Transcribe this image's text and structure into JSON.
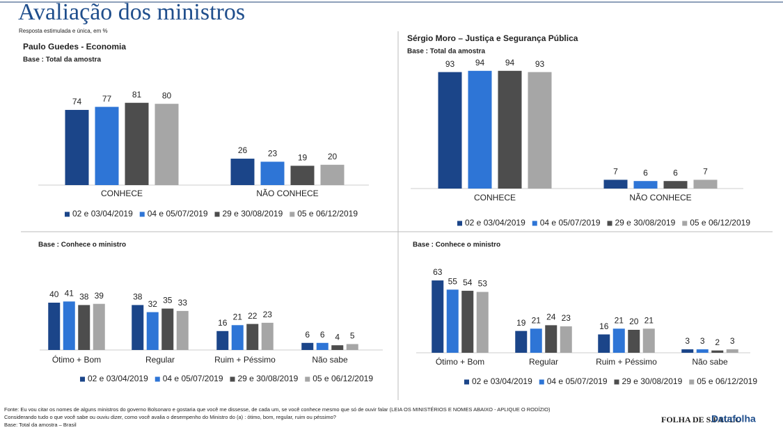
{
  "title": "Avaliação dos ministros",
  "subtitle": "Resposta estimulada e única, em %",
  "footnote": [
    "Fonte:   Eu vou citar os nomes de alguns ministros do governo Bolsonaro e gostaria que você  me dissesse, de cada um, se você conhece mesmo que só de ouvir falar (LEIA OS MINISTÉRIOS E NOMES ABAIXO - APLIQUE O RODÍZIO)",
    " Considerando tudo o que você sabe ou ouviu dizer, como você avalia o desempenho do Ministro do (a)  : ótimo, bom, regular, ruim ou péssimo?",
    "Base: Total da amostra – Brasil"
  ],
  "logos": [
    "FOLHA DE S.PAULO",
    "Datafolha"
  ],
  "chart_data": [
    {
      "type": "bar",
      "title": "Paulo Guedes - Economia",
      "subtitle": "Base : Total da amostra",
      "categories": [
        "CONHECE",
        "NÃO CONHECE"
      ],
      "ylim": [
        0,
        100
      ],
      "series": [
        {
          "name": "02 e 03/04/2019",
          "color": "#1b4589",
          "values": [
            74,
            26
          ]
        },
        {
          "name": "04 e 05/07/2019",
          "color": "#2e75d6",
          "values": [
            77,
            23
          ]
        },
        {
          "name": "29 e 30/08/2019",
          "color": "#4d4d4d",
          "values": [
            81,
            19
          ]
        },
        {
          "name": "05 e 06/12/2019",
          "color": "#a6a6a6",
          "values": [
            80,
            20
          ]
        }
      ]
    },
    {
      "type": "bar",
      "title": "Sérgio Moro – Justiça e Segurança Pública",
      "subtitle": "Base : Total da amostra",
      "categories": [
        "CONHECE",
        "NÃO CONHECE"
      ],
      "ylim": [
        0,
        100
      ],
      "series": [
        {
          "name": "02 e 03/04/2019",
          "color": "#1b4589",
          "values": [
            93,
            7
          ]
        },
        {
          "name": "04 e 05/07/2019",
          "color": "#2e75d6",
          "values": [
            94,
            6
          ]
        },
        {
          "name": "29 e 30/08/2019",
          "color": "#4d4d4d",
          "values": [
            94,
            6
          ]
        },
        {
          "name": "05 e 06/12/2019",
          "color": "#a6a6a6",
          "values": [
            93,
            7
          ]
        }
      ]
    },
    {
      "type": "bar",
      "subtitle": "Base : Conhece o ministro",
      "categories": [
        "Ótimo + Bom",
        "Regular",
        "Ruim + Péssimo",
        "Não sabe"
      ],
      "ylim": [
        0,
        100
      ],
      "series": [
        {
          "name": "02 e 03/04/2019",
          "color": "#1b4589",
          "values": [
            40,
            38,
            16,
            6
          ]
        },
        {
          "name": "04 e 05/07/2019",
          "color": "#2e75d6",
          "values": [
            41,
            32,
            21,
            6
          ]
        },
        {
          "name": "29 e 30/08/2019",
          "color": "#4d4d4d",
          "values": [
            38,
            35,
            22,
            4
          ]
        },
        {
          "name": "05 e 06/12/2019",
          "color": "#a6a6a6",
          "values": [
            39,
            33,
            23,
            5
          ]
        }
      ]
    },
    {
      "type": "bar",
      "subtitle": "Base : Conhece o ministro",
      "categories": [
        "Ótimo + Bom",
        "Regular",
        "Ruim + Péssimo",
        "Não sabe"
      ],
      "ylim": [
        0,
        100
      ],
      "series": [
        {
          "name": "02 e 03/04/2019",
          "color": "#1b4589",
          "values": [
            63,
            19,
            16,
            3
          ]
        },
        {
          "name": "04 e 05/07/2019",
          "color": "#2e75d6",
          "values": [
            55,
            21,
            21,
            3
          ]
        },
        {
          "name": "29 e 30/08/2019",
          "color": "#4d4d4d",
          "values": [
            54,
            24,
            20,
            2
          ]
        },
        {
          "name": "05 e 06/12/2019",
          "color": "#a6a6a6",
          "values": [
            53,
            23,
            21,
            3
          ]
        }
      ]
    }
  ]
}
